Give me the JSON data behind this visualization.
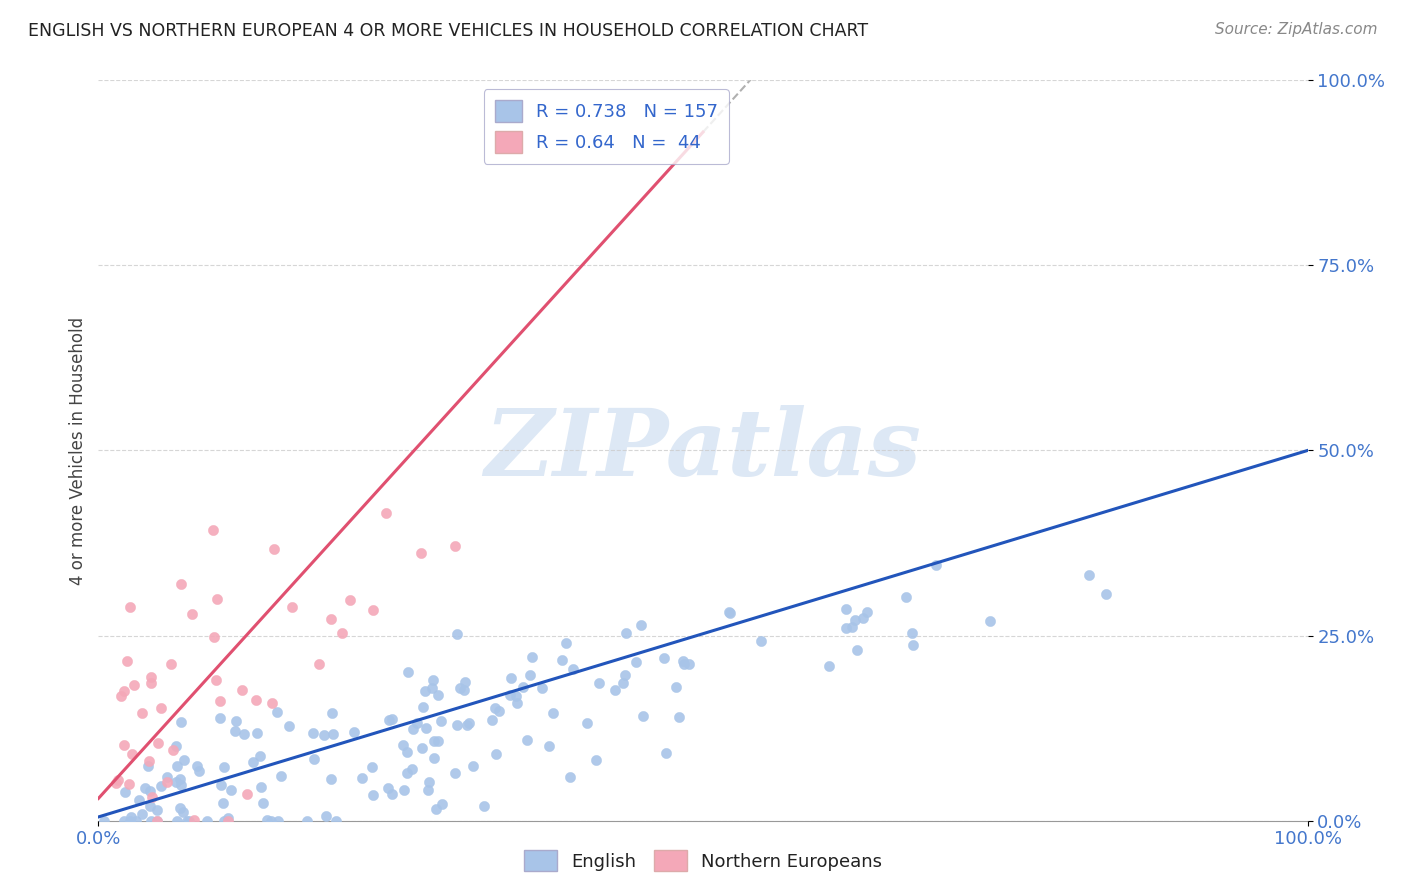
{
  "title": "ENGLISH VS NORTHERN EUROPEAN 4 OR MORE VEHICLES IN HOUSEHOLD CORRELATION CHART",
  "source": "Source: ZipAtlas.com",
  "ylabel": "4 or more Vehicles in Household",
  "xlim": [
    0,
    1.0
  ],
  "ylim": [
    0,
    1.0
  ],
  "xtick_vals": [
    0.0,
    1.0
  ],
  "xtick_labels": [
    "0.0%",
    "100.0%"
  ],
  "ytick_vals": [
    0.0,
    0.25,
    0.5,
    0.75,
    1.0
  ],
  "ytick_labels": [
    "0.0%",
    "25.0%",
    "50.0%",
    "75.0%",
    "100.0%"
  ],
  "english_R": 0.738,
  "english_N": 157,
  "northern_R": 0.64,
  "northern_N": 44,
  "english_color": "#a8c4e8",
  "northern_color": "#f4a8b8",
  "english_line_color": "#2255bb",
  "northern_line_color": "#e05070",
  "grey_dash_color": "#b0b0b0",
  "watermark_color": "#dde8f5",
  "background_color": "#ffffff",
  "grid_color": "#cccccc",
  "tick_color": "#4477cc",
  "title_color": "#222222",
  "source_color": "#888888",
  "ylabel_color": "#444444",
  "legend_text_color": "#3366cc",
  "english_seed": 12,
  "northern_seed": 99
}
